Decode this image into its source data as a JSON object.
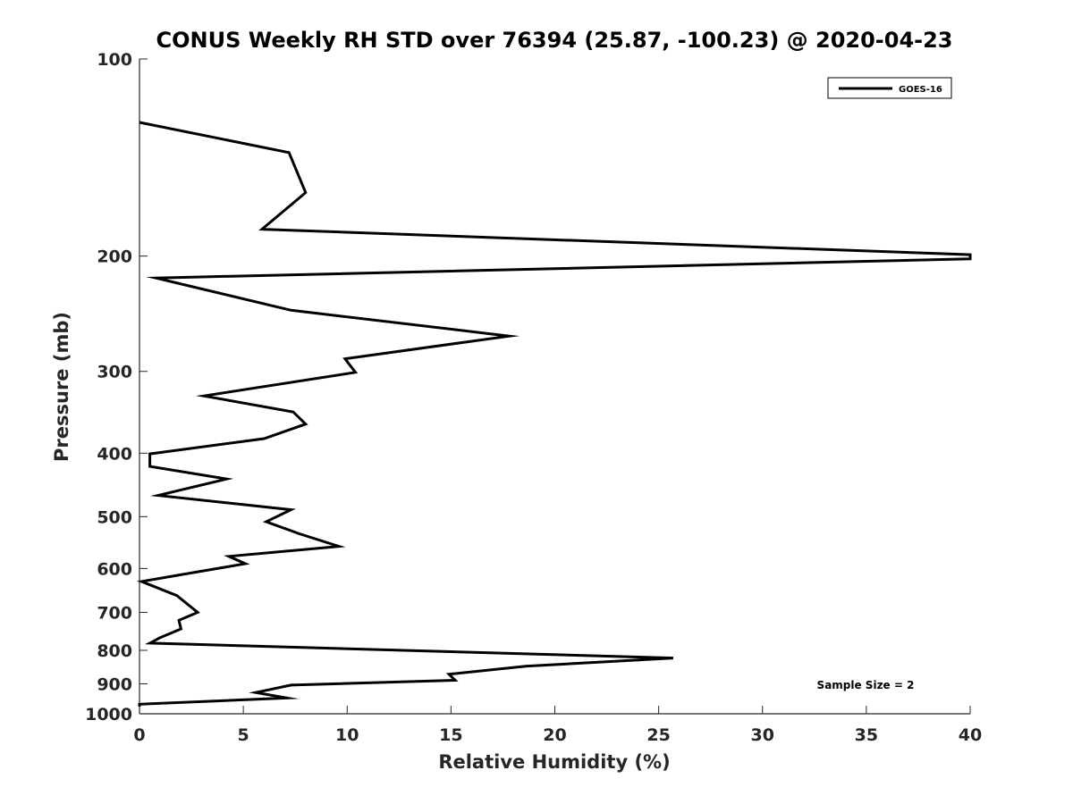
{
  "chart_data": {
    "type": "line",
    "title": "CONUS Weekly RH STD over 76394 (25.87, -100.23) @ 2020-04-23",
    "xlabel": "Relative Humidity (%)",
    "ylabel": "Pressure (mb)",
    "xlim": [
      0,
      40
    ],
    "ylim": [
      100,
      1000
    ],
    "yscale": "log",
    "y_reversed": true,
    "xticks": [
      0,
      5,
      10,
      15,
      20,
      25,
      30,
      35,
      40
    ],
    "yticks": [
      100,
      200,
      300,
      400,
      500,
      600,
      700,
      800,
      900,
      1000
    ],
    "grid": false,
    "legend_position": "top-right",
    "annotation": "Sample Size = 2",
    "series": [
      {
        "name": "GOES-16",
        "color": "#000000",
        "points": [
          [
            0,
            125
          ],
          [
            7.2,
            139
          ],
          [
            8.0,
            160
          ],
          [
            5.9,
            182
          ],
          [
            40,
            199
          ],
          [
            40,
            202
          ],
          [
            0.8,
            216
          ],
          [
            7.3,
            242
          ],
          [
            17.8,
            265
          ],
          [
            9.9,
            287
          ],
          [
            10.4,
            301
          ],
          [
            3.1,
            327
          ],
          [
            7.4,
            346
          ],
          [
            8.0,
            361
          ],
          [
            6.0,
            380
          ],
          [
            0.5,
            401
          ],
          [
            0.5,
            419
          ],
          [
            4.2,
            438
          ],
          [
            0.9,
            464
          ],
          [
            7.3,
            488
          ],
          [
            6.1,
            509
          ],
          [
            7.7,
            531
          ],
          [
            9.6,
            555
          ],
          [
            4.3,
            575
          ],
          [
            5.1,
            590
          ],
          [
            2.8,
            607
          ],
          [
            0.1,
            628
          ],
          [
            1.8,
            660
          ],
          [
            2.8,
            700
          ],
          [
            1.9,
            720
          ],
          [
            2.0,
            742
          ],
          [
            1.0,
            765
          ],
          [
            0.5,
            780
          ],
          [
            25.7,
            822
          ],
          [
            18.6,
            846
          ],
          [
            14.9,
            870
          ],
          [
            15.2,
            889
          ],
          [
            7.3,
            904
          ],
          [
            5.6,
            928
          ],
          [
            7.1,
            946
          ],
          [
            0,
            967
          ],
          [
            0,
            975
          ]
        ]
      }
    ]
  }
}
